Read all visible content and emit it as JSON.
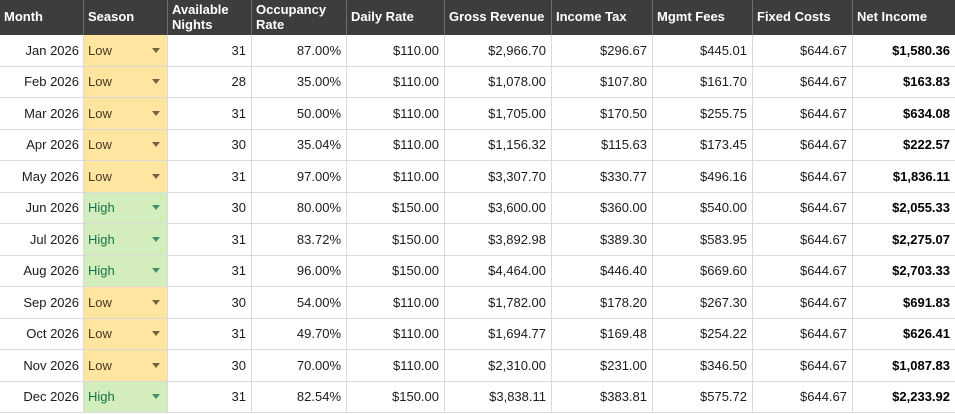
{
  "table": {
    "columns": [
      {
        "key": "month",
        "label": "Month"
      },
      {
        "key": "season",
        "label": "Season"
      },
      {
        "key": "nights",
        "label": "Available Nights"
      },
      {
        "key": "occupancy",
        "label": "Occupancy Rate"
      },
      {
        "key": "daily",
        "label": "Daily Rate"
      },
      {
        "key": "gross",
        "label": "Gross Revenue"
      },
      {
        "key": "tax",
        "label": "Income Tax"
      },
      {
        "key": "mgmt",
        "label": "Mgmt Fees"
      },
      {
        "key": "fixed",
        "label": "Fixed Costs"
      },
      {
        "key": "net",
        "label": "Net Income"
      }
    ],
    "rows": [
      {
        "month": "Jan 2026",
        "season": "Low",
        "nights": "31",
        "occupancy": "87.00%",
        "daily": "$110.00",
        "gross": "$2,966.70",
        "tax": "$296.67",
        "mgmt": "$445.01",
        "fixed": "$644.67",
        "net": "$1,580.36"
      },
      {
        "month": "Feb 2026",
        "season": "Low",
        "nights": "28",
        "occupancy": "35.00%",
        "daily": "$110.00",
        "gross": "$1,078.00",
        "tax": "$107.80",
        "mgmt": "$161.70",
        "fixed": "$644.67",
        "net": "$163.83"
      },
      {
        "month": "Mar 2026",
        "season": "Low",
        "nights": "31",
        "occupancy": "50.00%",
        "daily": "$110.00",
        "gross": "$1,705.00",
        "tax": "$170.50",
        "mgmt": "$255.75",
        "fixed": "$644.67",
        "net": "$634.08"
      },
      {
        "month": "Apr 2026",
        "season": "Low",
        "nights": "30",
        "occupancy": "35.04%",
        "daily": "$110.00",
        "gross": "$1,156.32",
        "tax": "$115.63",
        "mgmt": "$173.45",
        "fixed": "$644.67",
        "net": "$222.57"
      },
      {
        "month": "May 2026",
        "season": "Low",
        "nights": "31",
        "occupancy": "97.00%",
        "daily": "$110.00",
        "gross": "$3,307.70",
        "tax": "$330.77",
        "mgmt": "$496.16",
        "fixed": "$644.67",
        "net": "$1,836.11"
      },
      {
        "month": "Jun 2026",
        "season": "High",
        "nights": "30",
        "occupancy": "80.00%",
        "daily": "$150.00",
        "gross": "$3,600.00",
        "tax": "$360.00",
        "mgmt": "$540.00",
        "fixed": "$644.67",
        "net": "$2,055.33"
      },
      {
        "month": "Jul 2026",
        "season": "High",
        "nights": "31",
        "occupancy": "83.72%",
        "daily": "$150.00",
        "gross": "$3,892.98",
        "tax": "$389.30",
        "mgmt": "$583.95",
        "fixed": "$644.67",
        "net": "$2,275.07"
      },
      {
        "month": "Aug 2026",
        "season": "High",
        "nights": "31",
        "occupancy": "96.00%",
        "daily": "$150.00",
        "gross": "$4,464.00",
        "tax": "$446.40",
        "mgmt": "$669.60",
        "fixed": "$644.67",
        "net": "$2,703.33"
      },
      {
        "month": "Sep 2026",
        "season": "Low",
        "nights": "30",
        "occupancy": "54.00%",
        "daily": "$110.00",
        "gross": "$1,782.00",
        "tax": "$178.20",
        "mgmt": "$267.30",
        "fixed": "$644.67",
        "net": "$691.83"
      },
      {
        "month": "Oct 2026",
        "season": "Low",
        "nights": "31",
        "occupancy": "49.70%",
        "daily": "$110.00",
        "gross": "$1,694.77",
        "tax": "$169.48",
        "mgmt": "$254.22",
        "fixed": "$644.67",
        "net": "$626.41"
      },
      {
        "month": "Nov 2026",
        "season": "Low",
        "nights": "30",
        "occupancy": "70.00%",
        "daily": "$110.00",
        "gross": "$2,310.00",
        "tax": "$231.00",
        "mgmt": "$346.50",
        "fixed": "$644.67",
        "net": "$1,087.83"
      },
      {
        "month": "Dec 2026",
        "season": "High",
        "nights": "31",
        "occupancy": "82.54%",
        "daily": "$150.00",
        "gross": "$3,838.11",
        "tax": "$383.81",
        "mgmt": "$575.72",
        "fixed": "$644.67",
        "net": "$2,233.92"
      }
    ]
  },
  "colors": {
    "header_bg": "#3d3d3d",
    "header_text": "#ffffff",
    "low_bg": "#ffe5a0",
    "low_text": "#473821",
    "high_bg": "#d4edbc",
    "high_text": "#11734b",
    "gridline": "#dadada"
  }
}
